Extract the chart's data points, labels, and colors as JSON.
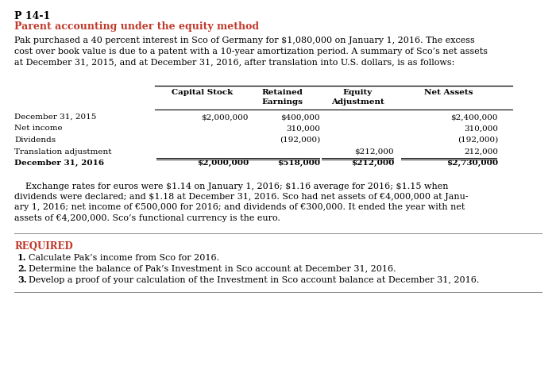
{
  "problem_number": "P 14-1",
  "subtitle": "Parent accounting under the equity method",
  "bg_color": "#ffffff",
  "orange_color": "#c0392b",
  "body_text_1": "Pak purchased a 40 percent interest in Sco of Germany for $1,080,000 on January 1, 2016. The excess",
  "body_text_2": "cost over book value is due to a patent with a 10-year amortization period. A summary of Sco’s net assets",
  "body_text_3": "at December 31, 2015, and at December 31, 2016, after translation into U.S. dollars, is as follows:",
  "header_cap": "Capital Stock",
  "header_ret1": "Retained",
  "header_ret2": "Earnings",
  "header_eq1": "Equity",
  "header_eq2": "Adjustment",
  "header_net": "Net Assets",
  "table_rows": [
    {
      "label": "December 31, 2015",
      "cap_stock": "$2,000,000",
      "ret_earn": "$400,000",
      "eq_adj": "",
      "net_assets": "$2,400,000",
      "bold": false
    },
    {
      "label": "Net income",
      "cap_stock": "",
      "ret_earn": "310,000",
      "eq_adj": "",
      "net_assets": "310,000",
      "bold": false
    },
    {
      "label": "Dividends",
      "cap_stock": "",
      "ret_earn": "(192,000)",
      "eq_adj": "",
      "net_assets": "(192,000)",
      "bold": false
    },
    {
      "label": "Translation adjustment",
      "cap_stock": "",
      "ret_earn": "",
      "eq_adj": "$212,000",
      "net_assets": "212,000",
      "bold": false
    },
    {
      "label": "December 31, 2016",
      "cap_stock": "$2,000,000",
      "ret_earn": "$518,000",
      "eq_adj": "$212,000",
      "net_assets": "$2,730,000",
      "bold": true
    }
  ],
  "exchange_lines": [
    "    Exchange rates for euros were $1.14 on January 1, 2016; $1.16 average for 2016; $1.15 when",
    "dividends were declared; and $1.18 at December 31, 2016. Sco had net assets of €4,000,000 at Janu-",
    "ary 1, 2016; net income of €500,000 for 2016; and dividends of €300,000. It ended the year with net",
    "assets of €4,200,000. Sco’s functional currency is the euro."
  ],
  "required_label": "REQUIRED",
  "req1": "Calculate Pak’s income from Sco for 2016.",
  "req2": "Determine the balance of Pak’s Investment in Sco account at December 31, 2016.",
  "req3": "Develop a proof of your calculation of the Investment in Sco account balance at December 31, 2016."
}
